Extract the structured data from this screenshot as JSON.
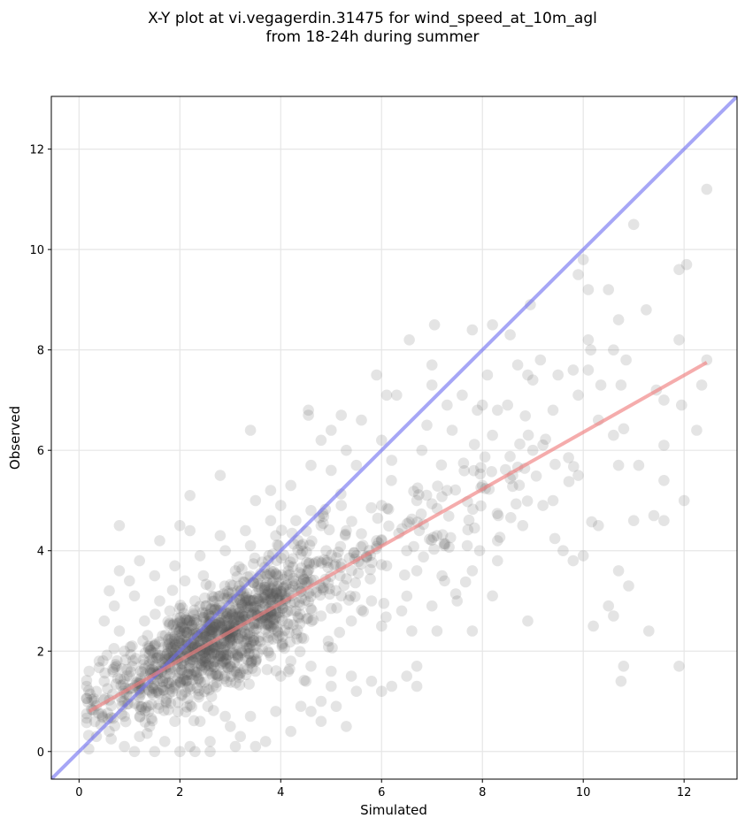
{
  "chart_data": {
    "type": "scatter",
    "title": "X-Y plot at vi.vegagerdin.31475 for wind_speed_at_10m_agl",
    "subtitle": "from 18-24h during summer",
    "xlabel": "Simulated",
    "ylabel": "Observed",
    "xlim": [
      -0.55,
      13.05
    ],
    "ylim": [
      -0.55,
      13.05
    ],
    "xticks": [
      0,
      2,
      4,
      6,
      8,
      10,
      12
    ],
    "yticks": [
      0,
      2,
      4,
      6,
      8,
      10,
      12
    ],
    "grid": true,
    "point_color": "#555555",
    "identity_line": {
      "color": "#6a6af0",
      "x": [
        -0.55,
        13.05
      ],
      "y": [
        -0.55,
        13.05
      ]
    },
    "regression_line": {
      "color": "#f08080",
      "x": [
        0.2,
        12.45
      ],
      "y": [
        0.8,
        7.75
      ]
    },
    "sample_points": [
      [
        12.45,
        11.2
      ],
      [
        11.0,
        10.5
      ],
      [
        10.0,
        9.8
      ],
      [
        12.05,
        9.7
      ],
      [
        11.9,
        9.6
      ],
      [
        9.9,
        9.5
      ],
      [
        10.5,
        9.2
      ],
      [
        10.1,
        9.2
      ],
      [
        8.95,
        8.9
      ],
      [
        11.25,
        8.8
      ],
      [
        10.7,
        8.6
      ],
      [
        7.05,
        8.5
      ],
      [
        8.2,
        8.5
      ],
      [
        6.55,
        8.2
      ],
      [
        8.55,
        8.3
      ],
      [
        10.1,
        8.2
      ],
      [
        11.9,
        8.2
      ],
      [
        7.8,
        8.4
      ],
      [
        10.15,
        8.0
      ],
      [
        10.6,
        8.0
      ],
      [
        12.45,
        7.8
      ],
      [
        10.85,
        7.8
      ],
      [
        9.15,
        7.8
      ],
      [
        7.0,
        7.7
      ],
      [
        5.9,
        7.5
      ],
      [
        8.9,
        7.5
      ],
      [
        9.8,
        7.6
      ],
      [
        8.1,
        7.5
      ],
      [
        8.7,
        7.7
      ],
      [
        10.75,
        7.3
      ],
      [
        11.6,
        7.0
      ],
      [
        12.35,
        7.3
      ],
      [
        9.0,
        7.4
      ],
      [
        9.5,
        7.5
      ],
      [
        10.1,
        7.6
      ],
      [
        7.3,
        6.9
      ],
      [
        7.6,
        7.1
      ],
      [
        8.0,
        6.9
      ],
      [
        8.3,
        6.8
      ],
      [
        6.3,
        7.1
      ],
      [
        6.1,
        7.1
      ],
      [
        7.0,
        7.3
      ],
      [
        5.2,
        6.7
      ],
      [
        5.6,
        6.6
      ],
      [
        5.0,
        6.4
      ],
      [
        4.55,
        6.8
      ],
      [
        4.55,
        6.7
      ],
      [
        3.4,
        6.4
      ],
      [
        4.8,
        6.2
      ],
      [
        5.3,
        6.0
      ],
      [
        6.0,
        6.2
      ],
      [
        6.9,
        6.5
      ],
      [
        7.9,
        6.8
      ],
      [
        8.5,
        6.9
      ],
      [
        9.4,
        6.8
      ],
      [
        9.9,
        7.1
      ],
      [
        10.35,
        7.3
      ],
      [
        11.45,
        7.2
      ],
      [
        12.25,
        6.4
      ],
      [
        11.95,
        6.9
      ],
      [
        11.6,
        6.1
      ],
      [
        10.3,
        6.6
      ],
      [
        10.6,
        6.3
      ],
      [
        9.0,
        6.0
      ],
      [
        8.2,
        6.3
      ],
      [
        7.4,
        6.4
      ],
      [
        6.8,
        6.0
      ],
      [
        6.2,
        5.8
      ],
      [
        5.5,
        5.7
      ],
      [
        5.0,
        5.6
      ],
      [
        4.6,
        5.7
      ],
      [
        4.2,
        5.3
      ],
      [
        3.8,
        5.2
      ],
      [
        2.8,
        5.5
      ],
      [
        2.2,
        5.1
      ],
      [
        3.5,
        5.0
      ],
      [
        4.0,
        4.9
      ],
      [
        4.6,
        4.8
      ],
      [
        5.2,
        4.9
      ],
      [
        6.0,
        4.9
      ],
      [
        6.7,
        5.0
      ],
      [
        7.3,
        5.2
      ],
      [
        8.0,
        5.3
      ],
      [
        8.6,
        5.5
      ],
      [
        9.4,
        5.0
      ],
      [
        9.9,
        5.5
      ],
      [
        10.7,
        5.7
      ],
      [
        11.1,
        5.7
      ],
      [
        11.6,
        5.4
      ],
      [
        12.0,
        5.0
      ],
      [
        9.2,
        4.9
      ],
      [
        8.8,
        4.5
      ],
      [
        8.3,
        4.2
      ],
      [
        7.7,
        4.1
      ],
      [
        7.1,
        4.3
      ],
      [
        6.5,
        4.0
      ],
      [
        5.9,
        4.2
      ],
      [
        5.3,
        4.4
      ],
      [
        4.8,
        4.5
      ],
      [
        4.3,
        4.6
      ],
      [
        3.8,
        4.6
      ],
      [
        3.3,
        4.4
      ],
      [
        2.8,
        4.3
      ],
      [
        2.2,
        4.4
      ],
      [
        2.0,
        4.5
      ],
      [
        1.6,
        4.2
      ],
      [
        0.8,
        4.5
      ],
      [
        1.2,
        3.8
      ],
      [
        0.8,
        3.6
      ],
      [
        1.0,
        3.4
      ],
      [
        0.6,
        3.2
      ],
      [
        1.5,
        3.5
      ],
      [
        1.9,
        3.7
      ],
      [
        2.4,
        3.9
      ],
      [
        2.9,
        4.0
      ],
      [
        3.4,
        4.1
      ],
      [
        3.9,
        4.3
      ],
      [
        4.4,
        4.1
      ],
      [
        4.9,
        4.0
      ],
      [
        5.5,
        3.9
      ],
      [
        6.1,
        3.7
      ],
      [
        6.7,
        3.6
      ],
      [
        7.2,
        3.5
      ],
      [
        7.8,
        3.6
      ],
      [
        8.3,
        3.8
      ],
      [
        9.6,
        4.0
      ],
      [
        9.8,
        3.8
      ],
      [
        10.0,
        3.9
      ],
      [
        10.3,
        4.5
      ],
      [
        11.4,
        4.7
      ],
      [
        11.6,
        4.6
      ],
      [
        11.0,
        4.6
      ],
      [
        8.2,
        3.1
      ],
      [
        7.5,
        3.0
      ],
      [
        7.0,
        2.9
      ],
      [
        6.4,
        2.8
      ],
      [
        5.8,
        3.0
      ],
      [
        5.2,
        3.1
      ],
      [
        4.6,
        3.2
      ],
      [
        4.1,
        3.3
      ],
      [
        3.6,
        3.5
      ],
      [
        3.1,
        3.6
      ],
      [
        2.6,
        3.3
      ],
      [
        2.1,
        3.4
      ],
      [
        1.6,
        3.0
      ],
      [
        1.1,
        3.1
      ],
      [
        0.7,
        2.9
      ],
      [
        0.5,
        2.6
      ],
      [
        0.8,
        2.4
      ],
      [
        1.3,
        2.6
      ],
      [
        1.8,
        2.8
      ],
      [
        2.3,
        3.0
      ],
      [
        2.8,
        3.1
      ],
      [
        3.3,
        3.0
      ],
      [
        3.8,
        2.9
      ],
      [
        4.3,
        2.8
      ],
      [
        4.8,
        2.7
      ],
      [
        5.4,
        2.6
      ],
      [
        6.0,
        2.5
      ],
      [
        6.6,
        2.4
      ],
      [
        7.1,
        2.4
      ],
      [
        7.8,
        2.4
      ],
      [
        8.9,
        2.6
      ],
      [
        10.2,
        2.5
      ],
      [
        10.5,
        2.9
      ],
      [
        10.6,
        2.7
      ],
      [
        11.3,
        2.4
      ],
      [
        10.7,
        3.6
      ],
      [
        10.9,
        3.3
      ],
      [
        11.9,
        1.7
      ],
      [
        10.8,
        1.7
      ],
      [
        10.75,
        1.4
      ],
      [
        6.7,
        1.7
      ],
      [
        6.5,
        1.5
      ],
      [
        6.7,
        1.3
      ],
      [
        6.2,
        1.3
      ],
      [
        5.8,
        1.4
      ],
      [
        5.4,
        1.5
      ],
      [
        5.0,
        1.6
      ],
      [
        4.6,
        1.7
      ],
      [
        4.2,
        1.8
      ],
      [
        3.8,
        1.9
      ],
      [
        3.3,
        2.0
      ],
      [
        2.9,
        2.1
      ],
      [
        2.4,
        2.2
      ],
      [
        1.9,
        2.3
      ],
      [
        1.4,
        2.1
      ],
      [
        0.9,
        2.0
      ],
      [
        0.4,
        1.8
      ],
      [
        0.2,
        1.6
      ],
      [
        0.5,
        1.4
      ],
      [
        1.0,
        1.5
      ],
      [
        1.5,
        1.7
      ],
      [
        2.0,
        1.9
      ],
      [
        2.5,
        1.8
      ],
      [
        3.0,
        1.7
      ],
      [
        3.5,
        1.6
      ],
      [
        4.0,
        1.5
      ],
      [
        4.5,
        1.4
      ],
      [
        5.0,
        1.3
      ],
      [
        5.5,
        1.2
      ],
      [
        6.0,
        1.2
      ],
      [
        4.8,
        1.0
      ],
      [
        4.4,
        0.9
      ],
      [
        3.9,
        0.8
      ],
      [
        3.4,
        0.7
      ],
      [
        2.9,
        0.7
      ],
      [
        2.4,
        0.6
      ],
      [
        1.9,
        0.6
      ],
      [
        1.4,
        0.5
      ],
      [
        0.9,
        0.7
      ],
      [
        0.6,
        0.4
      ],
      [
        0.3,
        1.0
      ],
      [
        0.15,
        1.3
      ],
      [
        1.2,
        0.3
      ],
      [
        1.7,
        0.2
      ],
      [
        2.2,
        0.1
      ],
      [
        2.6,
        0.2
      ],
      [
        3.2,
        0.3
      ],
      [
        3.7,
        0.2
      ],
      [
        4.2,
        0.4
      ],
      [
        4.8,
        0.6
      ],
      [
        5.1,
        0.9
      ],
      [
        5.3,
        0.5
      ],
      [
        0.9,
        0.1
      ],
      [
        1.1,
        0.0
      ],
      [
        1.5,
        0.0
      ],
      [
        2.0,
        0.0
      ],
      [
        2.3,
        0.0
      ],
      [
        2.6,
        0.0
      ],
      [
        3.1,
        0.1
      ],
      [
        3.5,
        0.1
      ],
      [
        4.6,
        0.8
      ],
      [
        3.0,
        0.5
      ]
    ]
  }
}
